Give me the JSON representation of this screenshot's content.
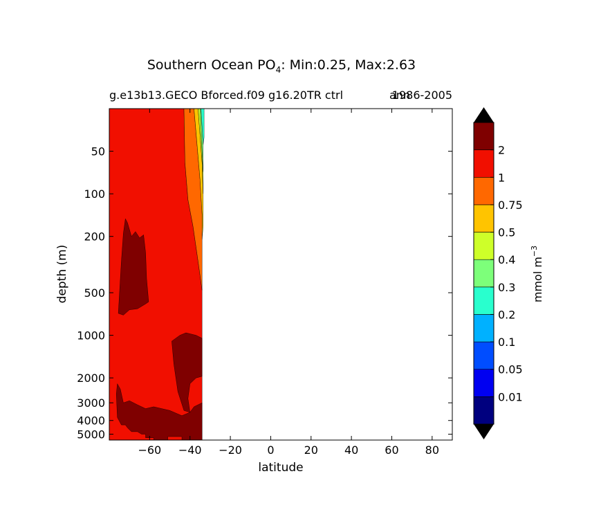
{
  "chart_data": {
    "type": "heatmap",
    "title_main": "Southern Ocean PO",
    "title_sub": "4",
    "title_rest": ": Min:0.25, Max:2.63",
    "subtitle_left": "g.e13b13.GECO Bforced.f09 g16.20TR ctrl",
    "subtitle_right": "1986-2005",
    "subtitle_overlap": "ann",
    "xlabel": "latitude",
    "ylabel": "depth (m)",
    "xlim": [
      -80,
      90
    ],
    "ylim": [
      5500,
      25
    ],
    "yscale": "log",
    "x_ticks": [
      {
        "value": -60,
        "label": "−60"
      },
      {
        "value": -40,
        "label": "−40"
      },
      {
        "value": -20,
        "label": "−20"
      },
      {
        "value": 0,
        "label": "0"
      },
      {
        "value": 20,
        "label": "20"
      },
      {
        "value": 40,
        "label": "40"
      },
      {
        "value": 60,
        "label": "60"
      },
      {
        "value": 80,
        "label": "80"
      }
    ],
    "y_ticks": [
      {
        "value": 50,
        "label": "50"
      },
      {
        "value": 100,
        "label": "100"
      },
      {
        "value": 200,
        "label": "200"
      },
      {
        "value": 500,
        "label": "500"
      },
      {
        "value": 1000,
        "label": "1000"
      },
      {
        "value": 2000,
        "label": "2000"
      },
      {
        "value": 3000,
        "label": "3000"
      },
      {
        "value": 4000,
        "label": "4000"
      },
      {
        "value": 5000,
        "label": "5000"
      }
    ],
    "colorbar": {
      "label": "mmol m",
      "label_exp": "−3",
      "levels": [
        "0.01",
        "0.05",
        "0.1",
        "0.2",
        "0.3",
        "0.4",
        "0.5",
        "0.75",
        "1",
        "2"
      ],
      "colors": [
        "#00007f",
        "#0000f1",
        "#004dff",
        "#00b1ff",
        "#29ffce",
        "#7dff7a",
        "#ceff29",
        "#ffc400",
        "#ff6800",
        "#f10f00",
        "#7f0000"
      ],
      "extend": "both"
    },
    "regions": [
      {
        "level_color": "#f10f00",
        "points": [
          [
            -80,
            25
          ],
          [
            -61,
            25
          ],
          [
            -58,
            25
          ],
          [
            -44,
            25
          ],
          [
            -43,
            25
          ],
          [
            -42.5,
            60
          ],
          [
            -41,
            110
          ],
          [
            -38.5,
            170
          ],
          [
            -36,
            300
          ],
          [
            -34,
            480
          ],
          [
            -34,
            3500
          ],
          [
            -34,
            5500
          ],
          [
            -80,
            5500
          ]
        ]
      },
      {
        "level_color": "#ff6800",
        "points": [
          [
            -43,
            25
          ],
          [
            -38,
            25
          ],
          [
            -35,
            80
          ],
          [
            -34,
            140
          ],
          [
            -34,
            210
          ],
          [
            -34,
            480
          ],
          [
            -36,
            300
          ],
          [
            -38.5,
            170
          ],
          [
            -41,
            110
          ],
          [
            -42.5,
            60
          ]
        ]
      },
      {
        "level_color": "#ffc400",
        "points": [
          [
            -38,
            25
          ],
          [
            -36,
            25
          ],
          [
            -34,
            60
          ],
          [
            -33.5,
            100
          ],
          [
            -33.5,
            170
          ],
          [
            -34,
            210
          ],
          [
            -34,
            140
          ],
          [
            -35,
            80
          ]
        ]
      },
      {
        "level_color": "#ceff29",
        "points": [
          [
            -36,
            25
          ],
          [
            -35,
            25
          ],
          [
            -34,
            50
          ],
          [
            -33.5,
            70
          ],
          [
            -33.5,
            100
          ],
          [
            -34,
            60
          ]
        ]
      },
      {
        "level_color": "#7dff7a",
        "points": [
          [
            -35,
            25
          ],
          [
            -34.5,
            25
          ],
          [
            -33.5,
            45
          ],
          [
            -33.5,
            70
          ],
          [
            -34,
            50
          ]
        ]
      },
      {
        "level_color": "#29ffce",
        "points": [
          [
            -34.5,
            25
          ],
          [
            -33,
            25
          ],
          [
            -33,
            40
          ],
          [
            -33.5,
            45
          ]
        ]
      },
      {
        "level_color": "#7f0000",
        "points": [
          [
            -75.5,
            700
          ],
          [
            -74,
            300
          ],
          [
            -73,
            190
          ],
          [
            -72,
            150
          ],
          [
            -71,
            160
          ],
          [
            -69,
            200
          ],
          [
            -67,
            185
          ],
          [
            -65,
            205
          ],
          [
            -63,
            195
          ],
          [
            -62,
            260
          ],
          [
            -61.5,
            400
          ],
          [
            -60.5,
            580
          ],
          [
            -62,
            600
          ],
          [
            -66,
            650
          ],
          [
            -70,
            660
          ],
          [
            -73,
            720
          ]
        ]
      },
      {
        "level_color": "#7f0000",
        "points": [
          [
            -49,
            1100
          ],
          [
            -45,
            1000
          ],
          [
            -42,
            960
          ],
          [
            -37,
            1000
          ],
          [
            -34,
            1050
          ],
          [
            -34,
            1950
          ],
          [
            -37,
            2000
          ],
          [
            -40,
            2200
          ],
          [
            -41,
            2800
          ],
          [
            -40,
            3500
          ],
          [
            -43,
            3400
          ],
          [
            -46,
            2500
          ],
          [
            -48,
            1600
          ]
        ]
      },
      {
        "level_color": "#7f0000",
        "points": [
          [
            -76.5,
            2600
          ],
          [
            -76,
            2200
          ],
          [
            -74.5,
            2400
          ],
          [
            -73,
            3000
          ],
          [
            -70,
            2900
          ],
          [
            -66,
            3100
          ],
          [
            -62,
            3300
          ],
          [
            -58,
            3200
          ],
          [
            -54,
            3300
          ],
          [
            -50,
            3400
          ],
          [
            -44,
            3700
          ],
          [
            -40,
            3500
          ],
          [
            -38,
            3200
          ],
          [
            -34,
            3000
          ],
          [
            -34,
            5500
          ],
          [
            -40,
            5500
          ],
          [
            -44,
            5500
          ],
          [
            -44,
            5200
          ],
          [
            -51,
            5200
          ],
          [
            -51,
            5500
          ],
          [
            -58,
            5500
          ],
          [
            -58,
            5300
          ],
          [
            -62,
            5300
          ],
          [
            -62,
            5000
          ],
          [
            -64,
            5000
          ],
          [
            -66,
            4800
          ],
          [
            -69,
            4800
          ],
          [
            -71,
            4500
          ],
          [
            -72,
            4300
          ],
          [
            -74,
            4300
          ],
          [
            -76,
            3800
          ]
        ]
      }
    ]
  }
}
